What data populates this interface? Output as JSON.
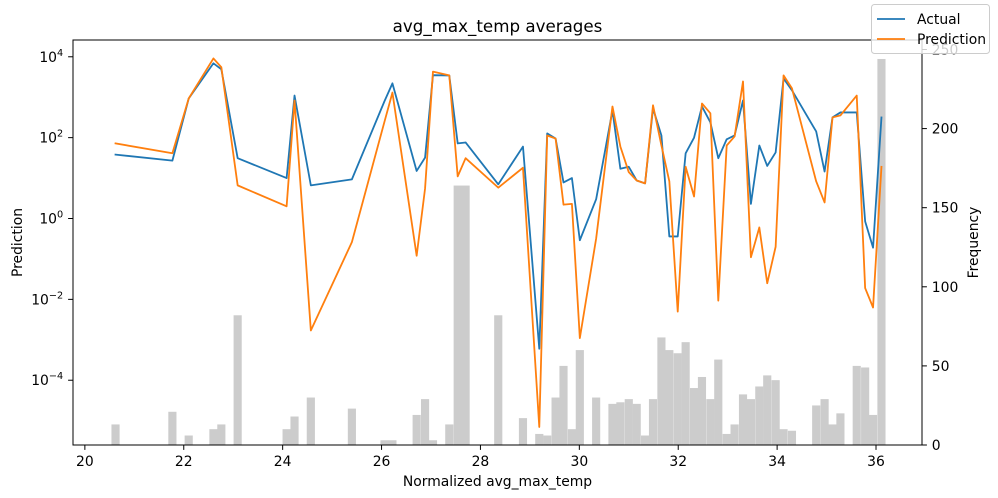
{
  "chart_data": {
    "type": "line",
    "title": "avg_max_temp averages",
    "xlabel": "Normalized avg_max_temp",
    "ylabel": "Prediction",
    "ylabel_right": "Frequency",
    "yscale": "log",
    "xlim": [
      19.76,
      36.93
    ],
    "ylim": [
      2.5e-06,
      26000.0
    ],
    "ylim_right": [
      0,
      256
    ],
    "grid": false,
    "legend": {
      "position": "top-right"
    },
    "x_ticks": [
      {
        "value": 20,
        "label": "20"
      },
      {
        "value": 22,
        "label": "22"
      },
      {
        "value": 24,
        "label": "24"
      },
      {
        "value": 26,
        "label": "26"
      },
      {
        "value": 28,
        "label": "28"
      },
      {
        "value": 30,
        "label": "30"
      },
      {
        "value": 32,
        "label": "32"
      },
      {
        "value": 34,
        "label": "34"
      },
      {
        "value": 36,
        "label": "36"
      }
    ],
    "y_ticks": [
      {
        "value": 10000,
        "base": "10",
        "exp": "4"
      },
      {
        "value": 100,
        "base": "10",
        "exp": "2"
      },
      {
        "value": 1,
        "base": "10",
        "exp": "0"
      },
      {
        "value": 0.01,
        "base": "10",
        "exp": "−2"
      },
      {
        "value": 0.0001,
        "base": "10",
        "exp": "−4"
      }
    ],
    "y_right_ticks": [
      {
        "value": 0,
        "label": "0"
      },
      {
        "value": 50,
        "label": "50"
      },
      {
        "value": 100,
        "label": "100"
      },
      {
        "value": 150,
        "label": "150"
      },
      {
        "value": 200,
        "label": "200"
      },
      {
        "value": 250,
        "label": "250"
      }
    ],
    "x": [
      20.62,
      21.77,
      22.1,
      22.6,
      22.76,
      23.09,
      24.08,
      24.24,
      24.57,
      25.4,
      26.06,
      26.22,
      26.71,
      26.88,
      27.04,
      27.37,
      27.54,
      27.7,
      28.36,
      28.86,
      29.19,
      29.35,
      29.52,
      29.68,
      29.85,
      30.01,
      30.34,
      30.67,
      30.83,
      31.0,
      31.16,
      31.33,
      31.49,
      31.66,
      31.82,
      31.99,
      32.15,
      32.32,
      32.48,
      32.65,
      32.81,
      32.98,
      33.14,
      33.31,
      33.47,
      33.64,
      33.8,
      33.97,
      34.13,
      34.3,
      34.79,
      34.96,
      35.12,
      35.28,
      35.61,
      35.78,
      35.94,
      36.11
    ],
    "series": [
      {
        "name": "Actual",
        "color": "#1f77b4",
        "values": [
          38,
          27,
          930,
          6900,
          4900,
          31,
          10,
          1100,
          6.6,
          9.3,
          800,
          2200,
          15,
          32,
          3500,
          3450,
          72,
          76,
          7,
          60,
          0.0006,
          127,
          95,
          7.8,
          10,
          0.29,
          3,
          470,
          17,
          19,
          8.7,
          7.4,
          530,
          113,
          0.36,
          0.36,
          41,
          100,
          590,
          240,
          31,
          91,
          113,
          830,
          2.3,
          64,
          20,
          43,
          2900,
          1480,
          142,
          14.5,
          316,
          420,
          420,
          0.85,
          0.19,
          316
        ]
      },
      {
        "name": "Prediction",
        "color": "#ff7f0e",
        "values": [
          72,
          41,
          930,
          9100,
          5500,
          6.6,
          2.0,
          830,
          0.0017,
          0.26,
          250,
          1300,
          0.12,
          5.5,
          4300,
          3470,
          11,
          31,
          5.8,
          18,
          7e-06,
          113,
          95,
          2.2,
          2.3,
          0.0011,
          0.32,
          590,
          60,
          14,
          8.7,
          7.4,
          630,
          64,
          8.3,
          0.005,
          19,
          3.5,
          700,
          400,
          0.0093,
          64,
          107,
          2450,
          0.11,
          0.6,
          0.025,
          0.2,
          3470,
          1650,
          8.3,
          2.5,
          316,
          355,
          1100,
          0.019,
          0.0063,
          19
        ]
      }
    ],
    "histogram": {
      "axis": "right",
      "color": "#cccccc",
      "bin_width": 0.1648,
      "counts": [
        13,
        21,
        6,
        10,
        13,
        82,
        10,
        18,
        30,
        23,
        3,
        3,
        19,
        29,
        3,
        13,
        164,
        164,
        82,
        17,
        7,
        6,
        30,
        50,
        10,
        60,
        30,
        26,
        27,
        29,
        26,
        6,
        29,
        68,
        60,
        58,
        65,
        36,
        43,
        29,
        54,
        7,
        13,
        32,
        29,
        37,
        44,
        41,
        10,
        9,
        25,
        29,
        13,
        20,
        50,
        49,
        19,
        244
      ]
    }
  }
}
